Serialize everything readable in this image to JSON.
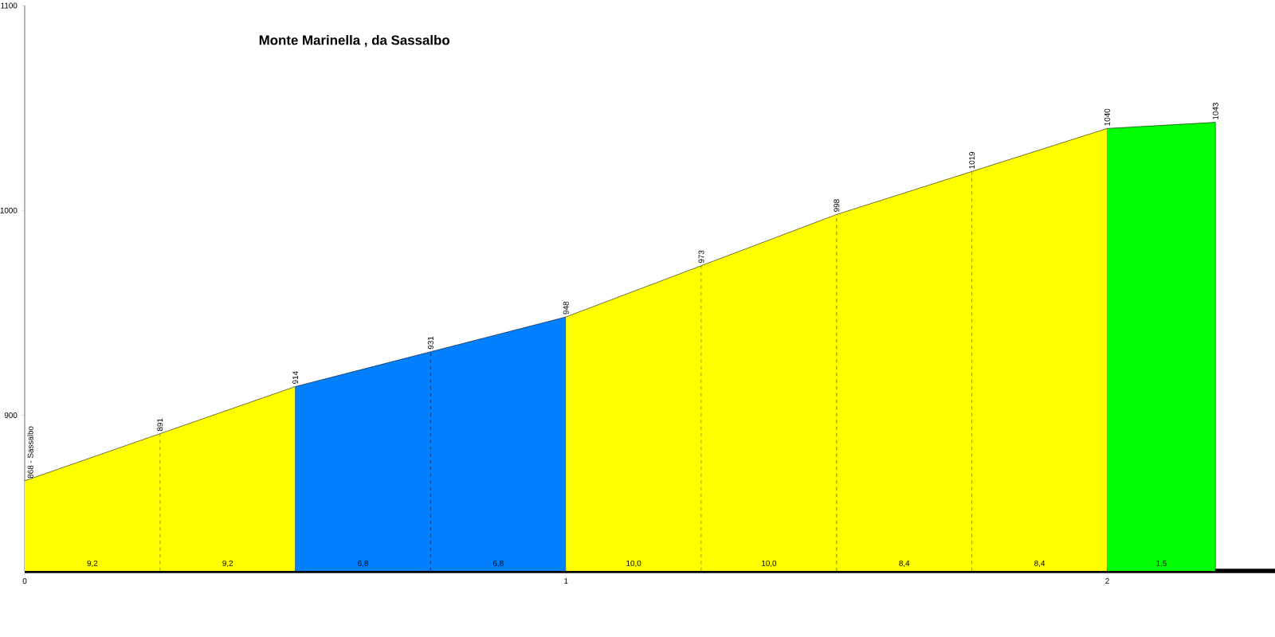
{
  "chart_data": {
    "type": "area",
    "title": "Monte Marinella , da Sassalbo",
    "xlim": [
      0,
      2.31
    ],
    "ylim": [
      824,
      1100
    ],
    "xticks": [
      0,
      1,
      2
    ],
    "yticks": [
      900,
      1000,
      1100
    ],
    "series": [
      {
        "color": "#ffff00",
        "x": [
          0,
          0.25,
          0.5
        ],
        "values": [
          868,
          891,
          914
        ],
        "value_labels": [
          "868 - Sassalbo",
          "891",
          "914"
        ]
      },
      {
        "color": "#0080ff",
        "x": [
          0.5,
          0.75,
          1
        ],
        "values": [
          914,
          931,
          948
        ],
        "value_labels": [
          null,
          "931",
          "948"
        ]
      },
      {
        "color": "#ffff00",
        "x": [
          1,
          1.25,
          1.5,
          1.75,
          2
        ],
        "values": [
          948,
          973,
          998,
          1019,
          1040
        ],
        "value_labels": [
          null,
          "973",
          "998",
          "1019",
          "1040"
        ]
      },
      {
        "color": "#00ff00",
        "x": [
          2,
          2.2
        ],
        "values": [
          1040,
          1043
        ],
        "value_labels": [
          null,
          "1043"
        ]
      }
    ],
    "annotations": [
      "9,2",
      "9,2",
      "6,8",
      "6,8",
      "10,0",
      "10,0",
      "8,4",
      "8,4",
      "1,5"
    ]
  }
}
